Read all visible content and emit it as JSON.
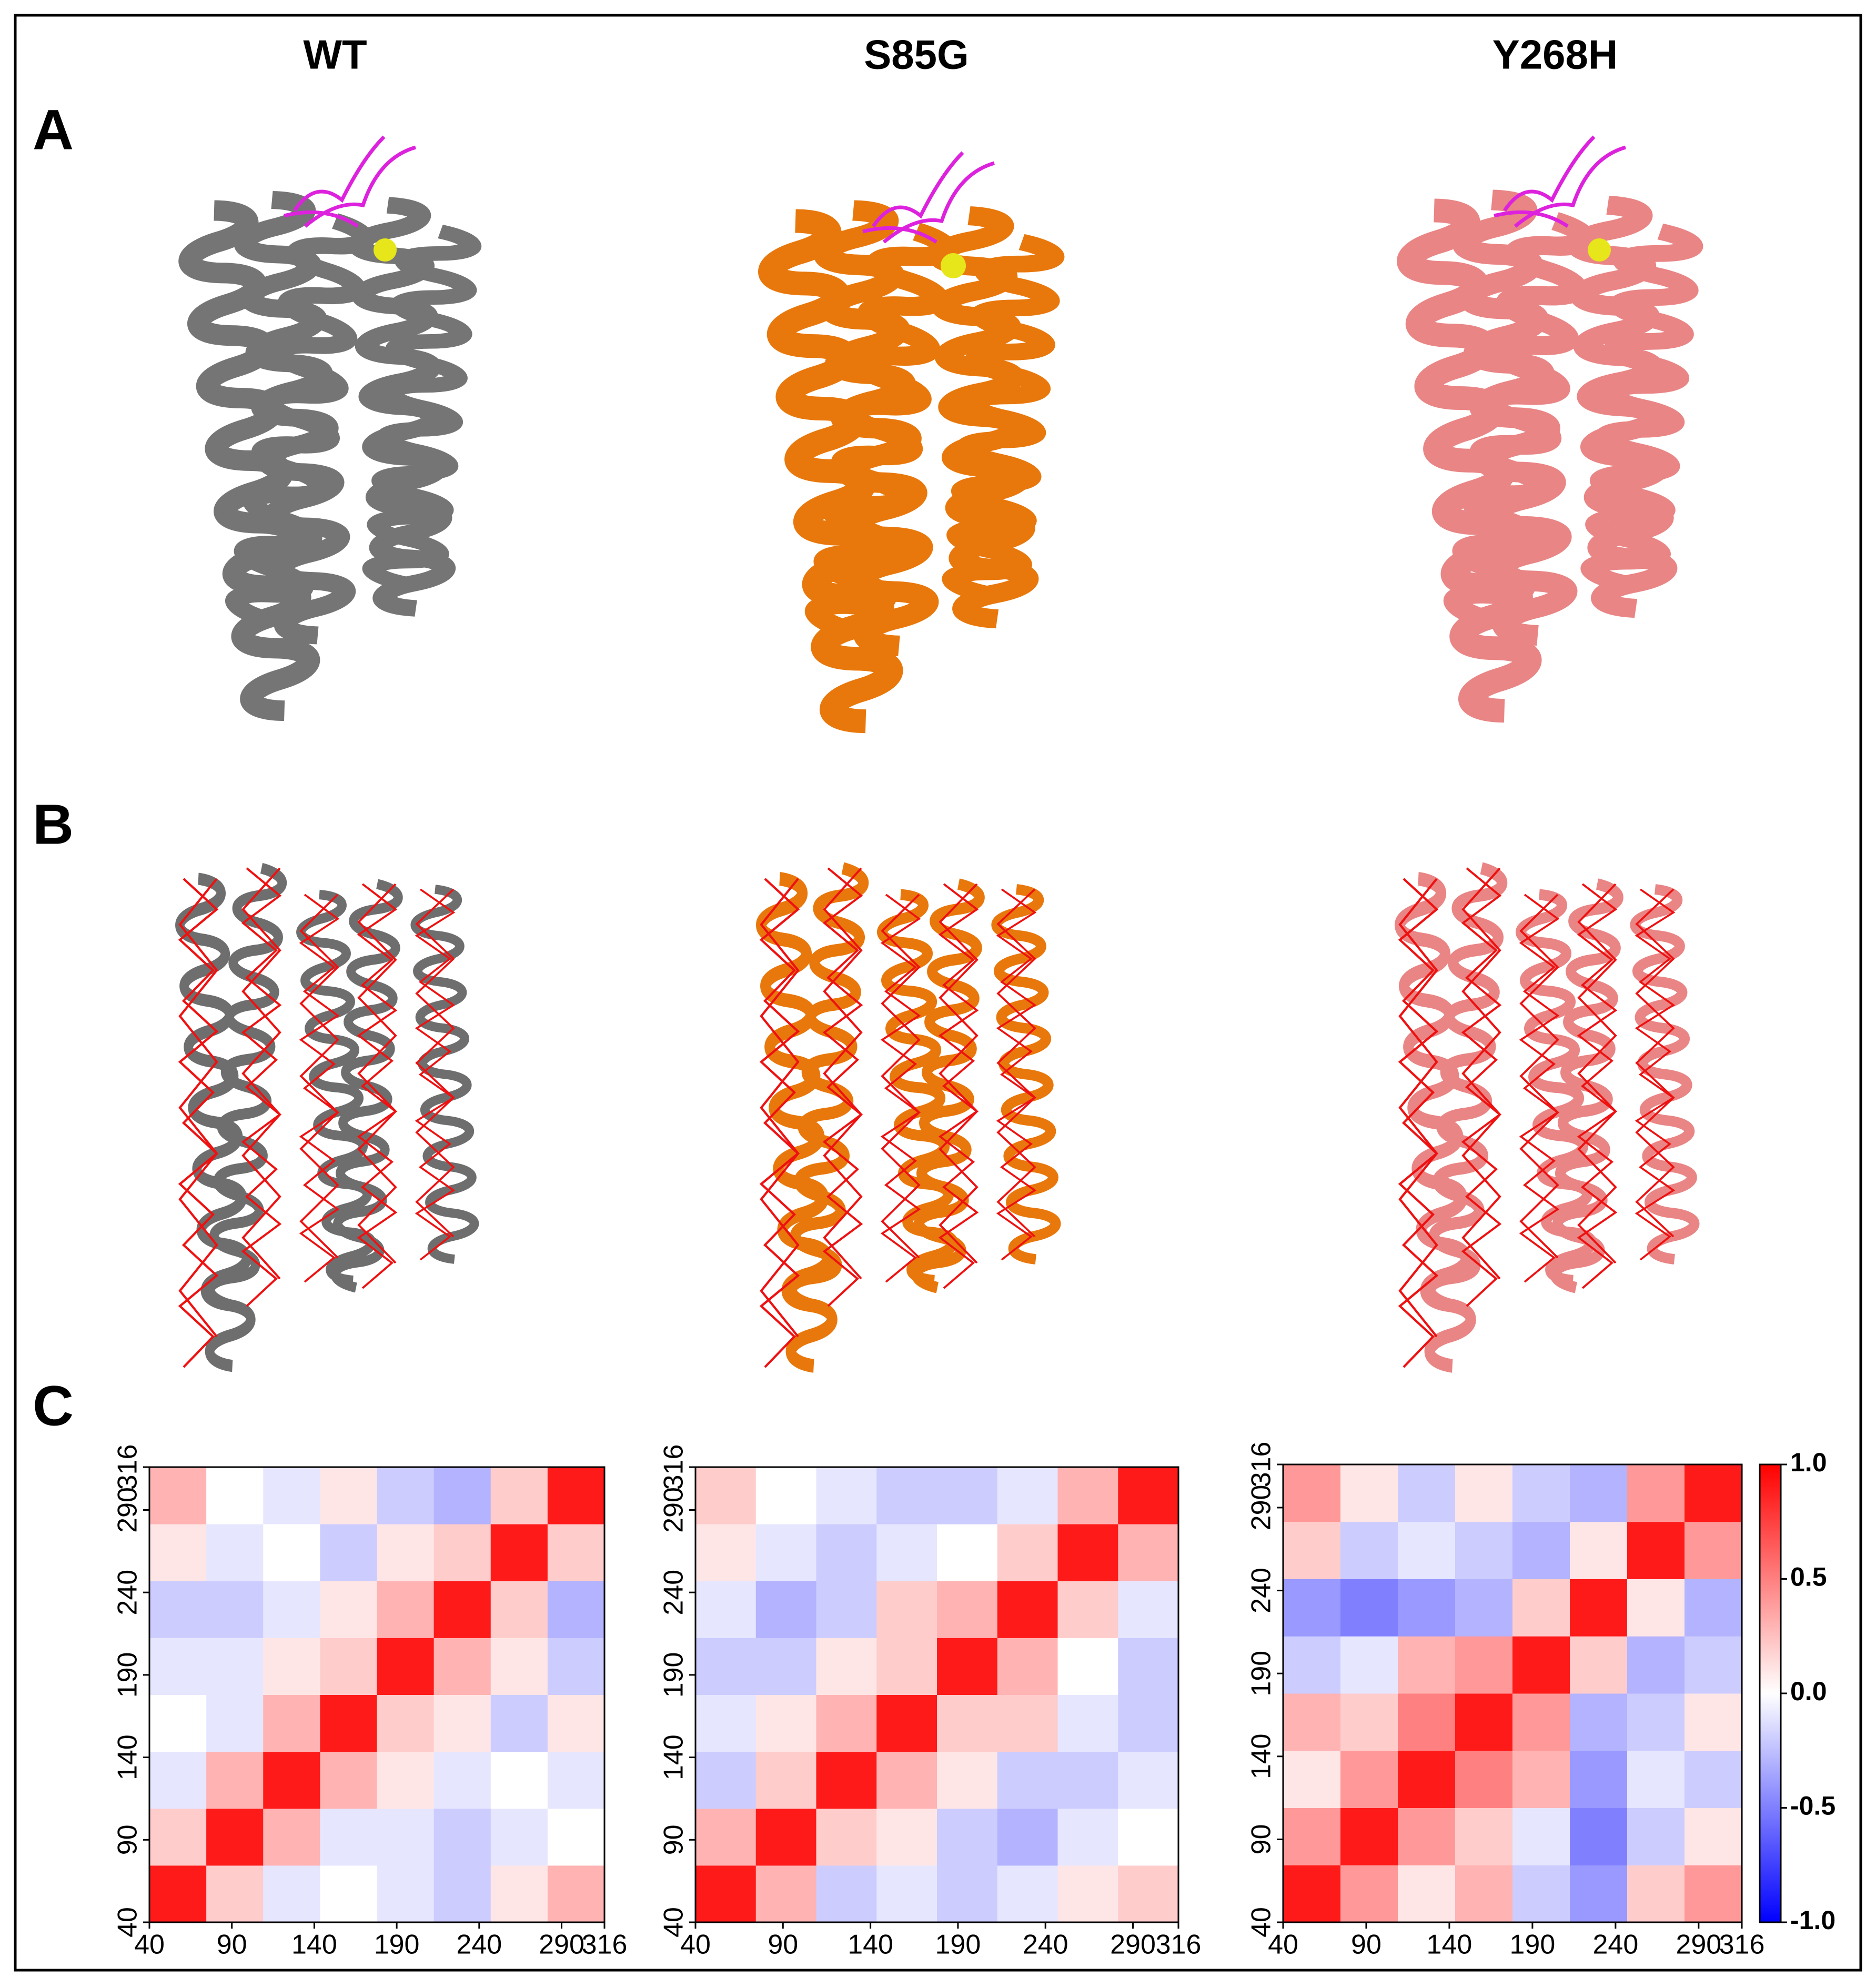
{
  "columns": [
    "WT",
    "S85G",
    "Y268H"
  ],
  "panels": [
    "A",
    "B",
    "C"
  ],
  "chart_data": [
    {
      "type": "heatmap",
      "xlim": [
        40,
        316
      ],
      "ylim": [
        40,
        316
      ],
      "xticks": [
        40,
        90,
        140,
        190,
        240,
        290,
        316
      ],
      "yticks": [
        40,
        90,
        140,
        190,
        240,
        290,
        316
      ],
      "clim": [
        -1,
        1
      ],
      "colormap": [
        "#0000ff",
        "#ffffff",
        "#ff0000"
      ],
      "matrix": [
        [
          0.9,
          0.2,
          -0.1,
          0.0,
          -0.1,
          -0.2,
          0.1,
          0.3
        ],
        [
          0.2,
          0.9,
          0.3,
          -0.1,
          -0.1,
          -0.2,
          -0.1,
          0.0
        ],
        [
          -0.1,
          0.3,
          0.9,
          0.3,
          0.1,
          -0.1,
          0.0,
          -0.1
        ],
        [
          0.0,
          -0.1,
          0.3,
          0.9,
          0.2,
          0.1,
          -0.2,
          0.1
        ],
        [
          -0.1,
          -0.1,
          0.1,
          0.2,
          0.9,
          0.3,
          0.1,
          -0.2
        ],
        [
          -0.2,
          -0.2,
          -0.1,
          0.1,
          0.3,
          0.9,
          0.2,
          -0.3
        ],
        [
          0.1,
          -0.1,
          0.0,
          -0.2,
          0.1,
          0.2,
          0.9,
          0.2
        ],
        [
          0.3,
          0.0,
          -0.1,
          0.1,
          -0.2,
          -0.3,
          0.2,
          0.9
        ]
      ]
    },
    {
      "type": "heatmap",
      "xlim": [
        40,
        316
      ],
      "ylim": [
        40,
        316
      ],
      "xticks": [
        40,
        90,
        140,
        190,
        240,
        290,
        316
      ],
      "yticks": [
        40,
        90,
        140,
        190,
        240,
        290,
        316
      ],
      "clim": [
        -1,
        1
      ],
      "colormap": [
        "#0000ff",
        "#ffffff",
        "#ff0000"
      ],
      "matrix": [
        [
          0.9,
          0.3,
          -0.2,
          -0.1,
          -0.2,
          -0.1,
          0.1,
          0.2
        ],
        [
          0.3,
          0.9,
          0.2,
          0.1,
          -0.2,
          -0.3,
          -0.1,
          0.0
        ],
        [
          -0.2,
          0.2,
          0.9,
          0.3,
          0.1,
          -0.2,
          -0.2,
          -0.1
        ],
        [
          -0.1,
          0.1,
          0.3,
          0.9,
          0.2,
          0.2,
          -0.1,
          -0.2
        ],
        [
          -0.2,
          -0.2,
          0.1,
          0.2,
          0.9,
          0.3,
          0.0,
          -0.2
        ],
        [
          -0.1,
          -0.3,
          -0.2,
          0.2,
          0.3,
          0.9,
          0.2,
          -0.1
        ],
        [
          0.1,
          -0.1,
          -0.2,
          -0.1,
          0.0,
          0.2,
          0.9,
          0.3
        ],
        [
          0.2,
          0.0,
          -0.1,
          -0.2,
          -0.2,
          -0.1,
          0.3,
          0.9
        ]
      ]
    },
    {
      "type": "heatmap",
      "xlim": [
        40,
        316
      ],
      "ylim": [
        40,
        316
      ],
      "xticks": [
        40,
        90,
        140,
        190,
        240,
        290,
        316
      ],
      "yticks": [
        40,
        90,
        140,
        190,
        240,
        290,
        316
      ],
      "clim": [
        -1,
        1
      ],
      "colormap": [
        "#0000ff",
        "#ffffff",
        "#ff0000"
      ],
      "colorbar_ticks": [
        {
          "value": 1,
          "label": "1.0"
        },
        {
          "value": 0.5,
          "label": "0.5"
        },
        {
          "value": 0,
          "label": "0.0"
        },
        {
          "value": -0.5,
          "label": "-0.5"
        },
        {
          "value": -1,
          "label": "-1.0"
        }
      ],
      "matrix": [
        [
          0.9,
          0.4,
          0.1,
          0.3,
          -0.2,
          -0.4,
          0.2,
          0.4
        ],
        [
          0.4,
          0.9,
          0.4,
          0.2,
          -0.1,
          -0.5,
          -0.2,
          0.1
        ],
        [
          0.1,
          0.4,
          0.9,
          0.5,
          0.3,
          -0.4,
          -0.1,
          -0.2
        ],
        [
          0.3,
          0.2,
          0.5,
          0.9,
          0.4,
          -0.3,
          -0.2,
          0.1
        ],
        [
          -0.2,
          -0.1,
          0.3,
          0.4,
          0.9,
          0.2,
          -0.3,
          -0.2
        ],
        [
          -0.4,
          -0.5,
          -0.4,
          -0.3,
          0.2,
          0.9,
          0.1,
          -0.3
        ],
        [
          0.2,
          -0.2,
          -0.1,
          -0.2,
          -0.3,
          0.1,
          0.9,
          0.4
        ],
        [
          0.4,
          0.1,
          -0.2,
          0.1,
          -0.2,
          -0.3,
          0.4,
          0.9
        ]
      ]
    }
  ]
}
